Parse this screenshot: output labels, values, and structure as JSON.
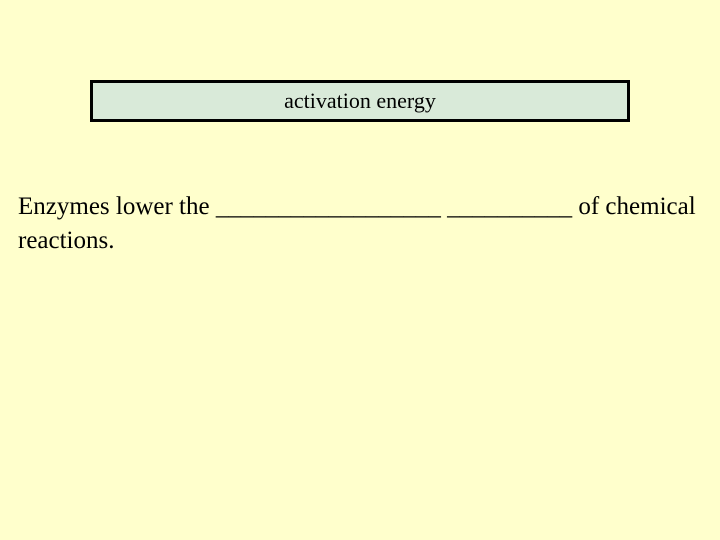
{
  "slide": {
    "background_color": "#ffffcc",
    "answer_box": {
      "text": "activation energy",
      "background_color": "#d9ead9",
      "border_color": "#000000",
      "border_width": 3,
      "font_size": 22,
      "text_color": "#000000"
    },
    "prompt": {
      "text": "Enzymes lower the __________________ __________ of chemical reactions.",
      "font_size": 25,
      "text_color": "#000000",
      "font_family": "Times New Roman"
    }
  }
}
